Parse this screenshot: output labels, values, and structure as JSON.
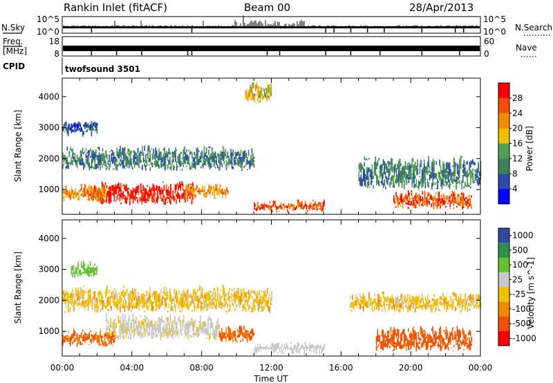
{
  "header": {
    "title": "Rankin Inlet (fitACF)",
    "beam": "Beam 00",
    "date": "28/Apr/2013"
  },
  "nsky_panel": {
    "left_label": "N.Sky",
    "left_ticks": [
      "10^5",
      "10^0"
    ],
    "right_label": "N.Search",
    "right_ticks": [
      "10^5",
      "10^0"
    ]
  },
  "freq_panel": {
    "left_label_line1": "Freq.",
    "left_label_line2": "[MHz]",
    "left_ticks": [
      "18",
      "8"
    ],
    "right_label": "Nave",
    "right_ticks": [
      "60",
      "0"
    ]
  },
  "cpid": {
    "label": "CPID",
    "value": "twofsound 3501"
  },
  "x_axis": {
    "label": "Time UT",
    "ticks": [
      "00:00",
      "04:00",
      "08:00",
      "12:00",
      "16:00",
      "20:00",
      "00:00"
    ]
  },
  "colors": {
    "power_scale": [
      "#0000ff",
      "#2c4aa8",
      "#3f7f5a",
      "#4fa050",
      "#f2c000",
      "#f28a00",
      "#f25000",
      "#ff0000"
    ],
    "velocity_scale": [
      "#ff0000",
      "#f25000",
      "#f28a00",
      "#f2c000",
      "#c8c8c8",
      "#66c033",
      "#2f8f4f",
      "#2f4aa0"
    ]
  },
  "chart_data": [
    {
      "type": "heatmap",
      "ylabel": "Slant Range [km]",
      "xlabel": "",
      "xlim_hours": [
        0,
        24
      ],
      "ylim": [
        200,
        4600
      ],
      "ytick_labels": [
        "1000",
        "2000",
        "3000",
        "4000"
      ],
      "colorbar": {
        "label": "Power [dB]",
        "tick_labels": [
          "4",
          "8",
          "12",
          "16",
          "20",
          "24",
          "28"
        ],
        "range": [
          0,
          32
        ]
      },
      "features": [
        {
          "t": [
            0.0,
            11.0
          ],
          "r": [
            1600,
            2450
          ],
          "level": 2
        },
        {
          "t": [
            1.5,
            7.5
          ],
          "r": [
            500,
            1300
          ],
          "level": 7
        },
        {
          "t": [
            0.0,
            2.5
          ],
          "r": [
            600,
            1200
          ],
          "level": 5
        },
        {
          "t": [
            7.0,
            9.5
          ],
          "r": [
            700,
            1200
          ],
          "level": 5
        },
        {
          "t": [
            11.0,
            15.0
          ],
          "r": [
            250,
            700
          ],
          "level": 6
        },
        {
          "t": [
            17.0,
            24.0
          ],
          "r": [
            1000,
            2100
          ],
          "level": 2
        },
        {
          "t": [
            19.0,
            23.5
          ],
          "r": [
            350,
            1000
          ],
          "level": 6
        },
        {
          "t": [
            0.0,
            2.0
          ],
          "r": [
            2700,
            3300
          ],
          "level": 1
        },
        {
          "t": [
            10.5,
            12.0
          ],
          "r": [
            3800,
            4500
          ],
          "level": 4
        }
      ]
    },
    {
      "type": "heatmap",
      "ylabel": "Slant Range [km]",
      "xlabel": "Time UT",
      "xlim_hours": [
        0,
        24
      ],
      "ylim": [
        200,
        4600
      ],
      "ytick_labels": [
        "1000",
        "2000",
        "3000",
        "4000"
      ],
      "colorbar": {
        "label": "Velocity [m s^-1]",
        "tick_labels": [
          "1000",
          "500",
          "100",
          "25",
          "-25",
          "-100",
          "-500",
          "-1000"
        ],
        "range": [
          -1000,
          1000
        ]
      },
      "features": [
        {
          "t": [
            0.0,
            12.0
          ],
          "r": [
            1600,
            2500
          ],
          "level": 0
        },
        {
          "t": [
            2.5,
            9.0
          ],
          "r": [
            700,
            1600
          ],
          "level": 50
        },
        {
          "t": [
            0.0,
            3.0
          ],
          "r": [
            500,
            1100
          ],
          "level": -120
        },
        {
          "t": [
            9.0,
            11.0
          ],
          "r": [
            600,
            1200
          ],
          "level": -120
        },
        {
          "t": [
            11.0,
            15.0
          ],
          "r": [
            250,
            700
          ],
          "level": 60
        },
        {
          "t": [
            18.0,
            23.5
          ],
          "r": [
            350,
            1200
          ],
          "level": -150
        },
        {
          "t": [
            16.5,
            24.0
          ],
          "r": [
            1600,
            2300
          ],
          "level": 0
        },
        {
          "t": [
            0.5,
            2.0
          ],
          "r": [
            2700,
            3300
          ],
          "level": 300
        }
      ]
    }
  ]
}
